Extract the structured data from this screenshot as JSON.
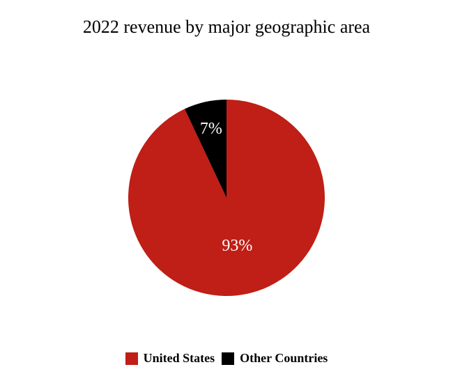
{
  "chart_data": {
    "type": "pie",
    "title": "2022 revenue by major geographic area",
    "slices": [
      {
        "name": "United States",
        "value": 93,
        "label": "93%",
        "color": "#bf1f16"
      },
      {
        "name": "Other Countries",
        "value": 7,
        "label": "7%",
        "color": "#000000"
      }
    ],
    "start_angle_deg": 0,
    "direction": "clockwise",
    "legend_position": "bottom"
  }
}
